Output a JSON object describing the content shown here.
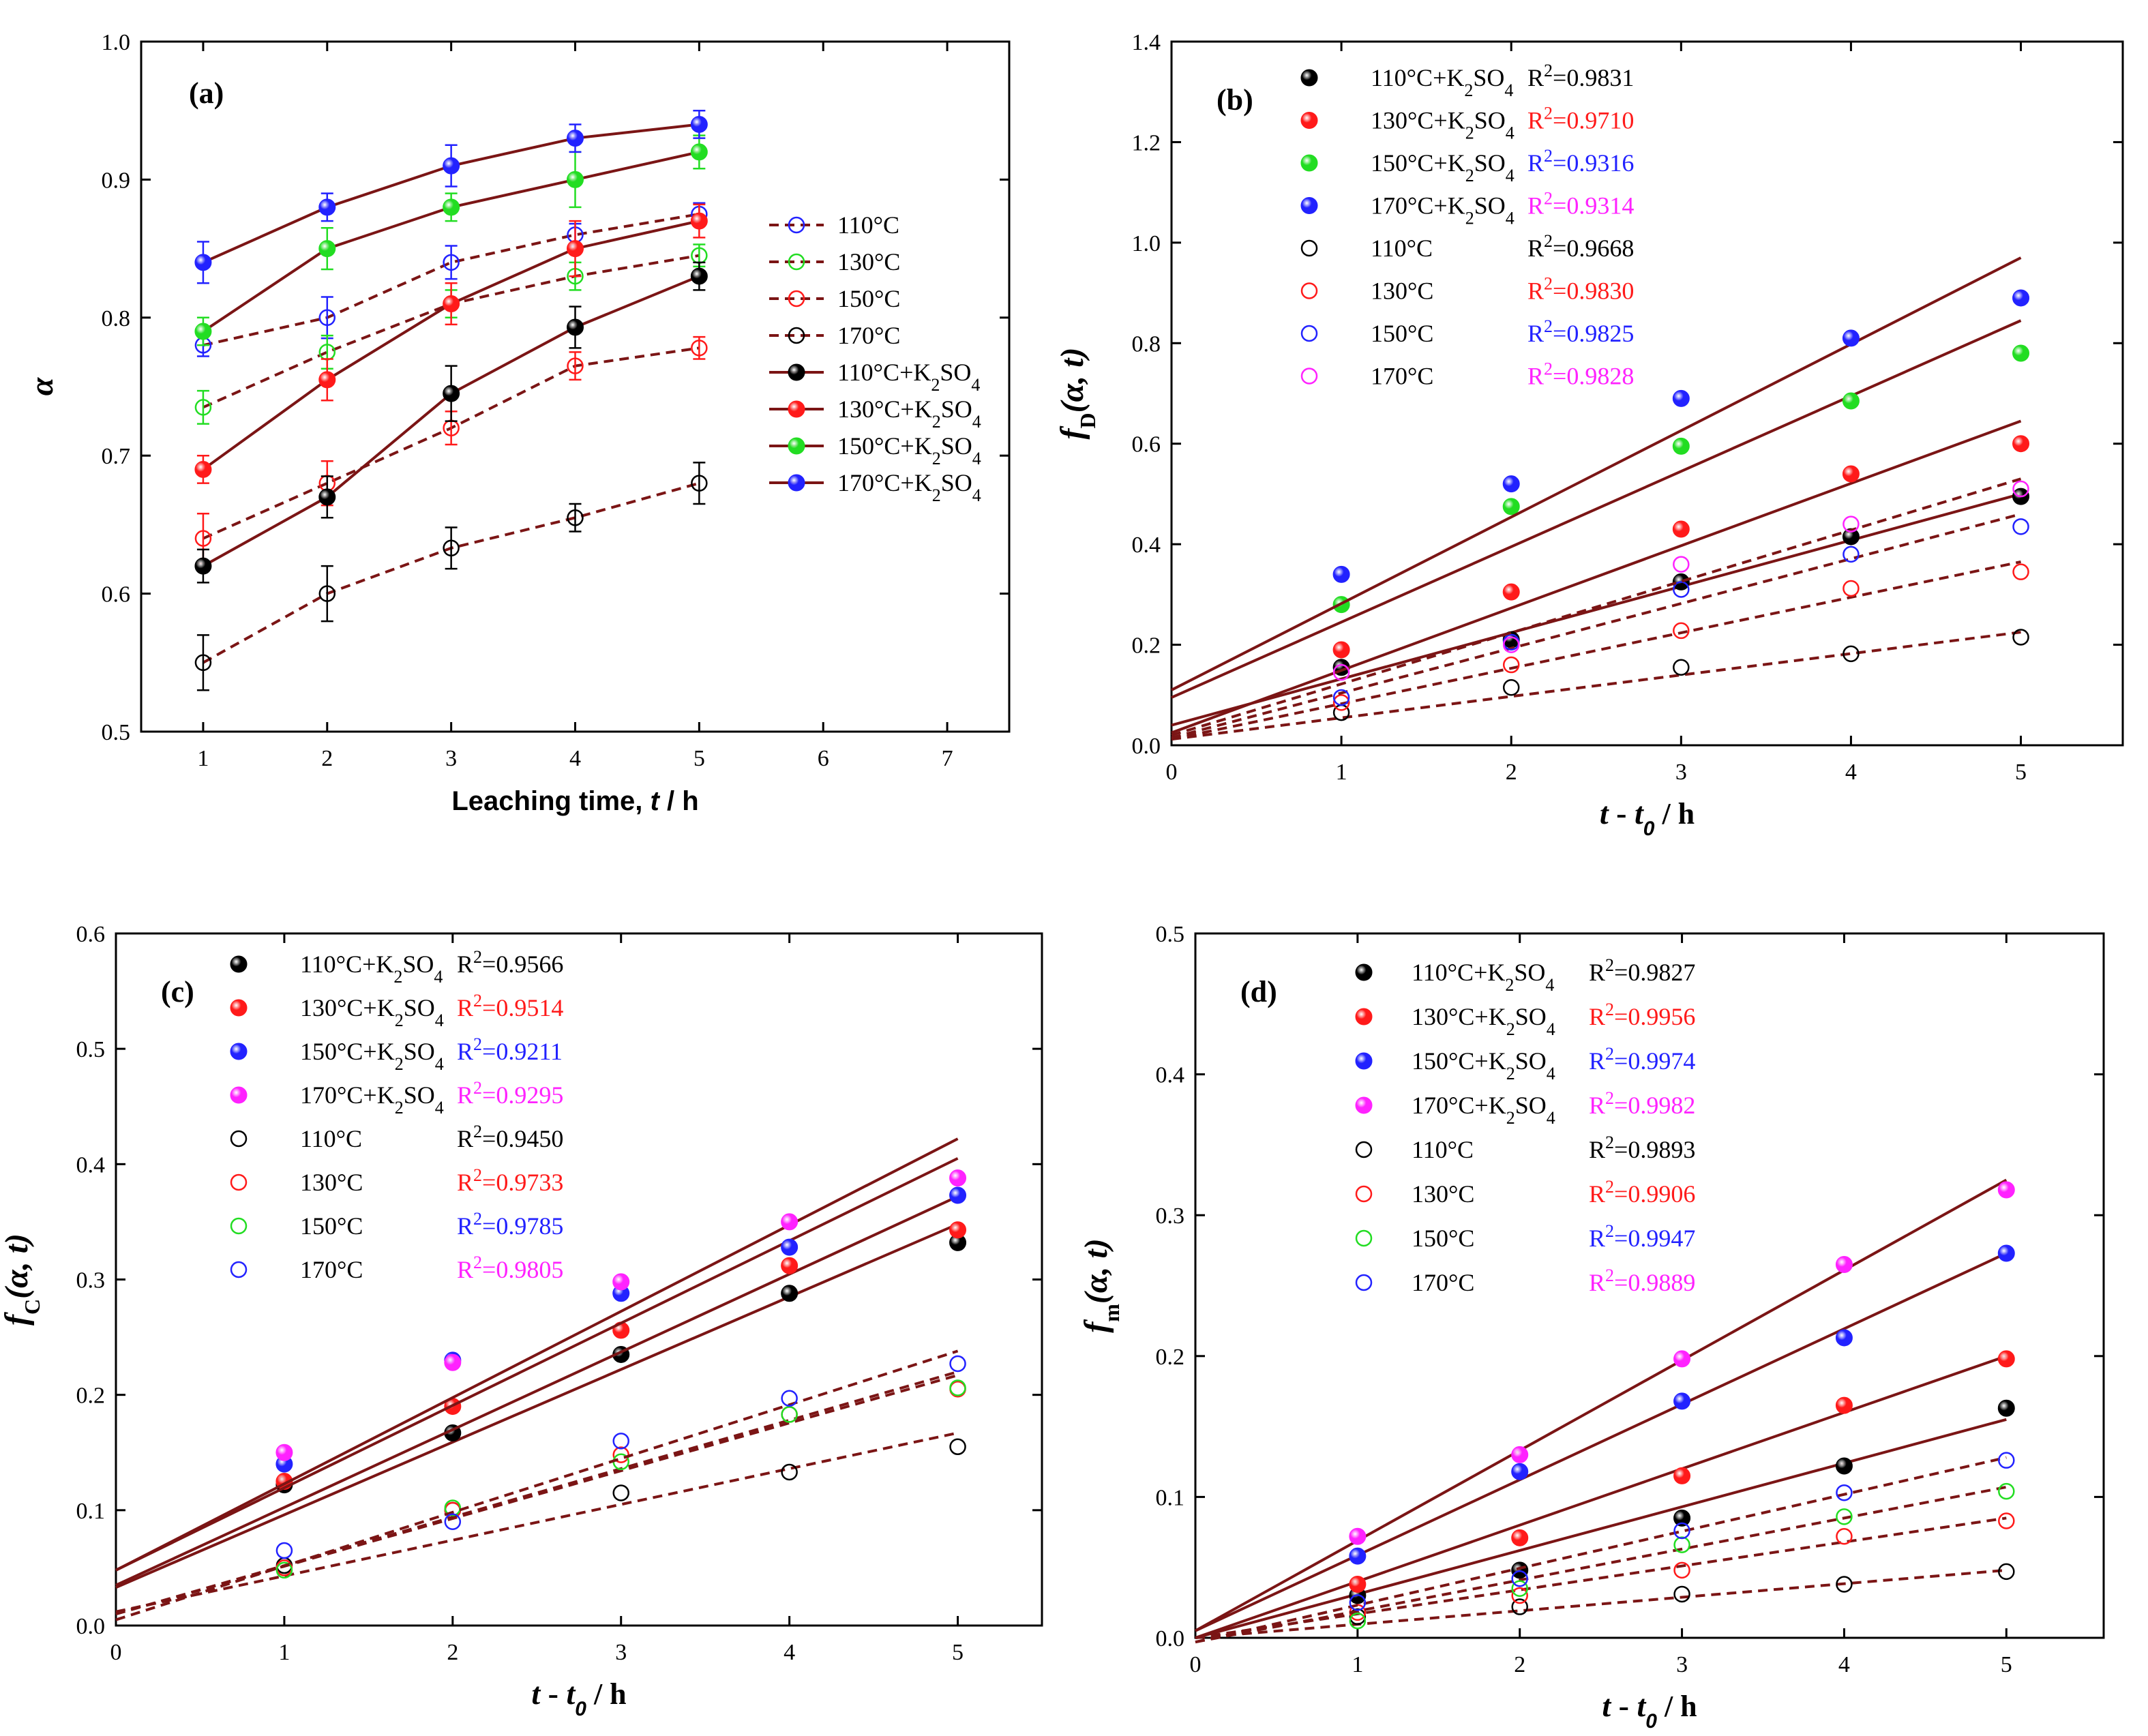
{
  "colors": {
    "line": "#7b1515",
    "black": "#000000",
    "red": "#ff1a1a",
    "green": "#22dd22",
    "blue": "#2222ff",
    "magenta": "#ff22ff"
  },
  "chart_data": [
    {
      "panel": "(a)",
      "type": "line",
      "xlabel": "Leaching time, t / h",
      "xlabel_parts": {
        "pre": "Leaching time, ",
        "var": "t",
        "post": "  / h"
      },
      "ylabel": "α",
      "xlim": [
        0.5,
        7.5
      ],
      "ylim": [
        0.5,
        1.0
      ],
      "xticks": [
        "1",
        "2",
        "3",
        "4",
        "5",
        "6",
        "7"
      ],
      "yticks": [
        "0.5",
        "0.6",
        "0.7",
        "0.8",
        "0.9",
        "1.0"
      ],
      "x": [
        1,
        2,
        3,
        4,
        5
      ],
      "series": [
        {
          "name": "110°C",
          "color": "blue",
          "filled": false,
          "dashed": true,
          "values": [
            0.78,
            0.8,
            0.84,
            0.86,
            0.875
          ],
          "errors": [
            0.008,
            0.015,
            0.012,
            0.008,
            0.008
          ]
        },
        {
          "name": "130°C",
          "color": "green",
          "filled": false,
          "dashed": true,
          "values": [
            0.735,
            0.775,
            0.81,
            0.83,
            0.845
          ],
          "errors": [
            0.012,
            0.012,
            0.01,
            0.01,
            0.008
          ]
        },
        {
          "name": "150°C",
          "color": "red",
          "filled": false,
          "dashed": true,
          "values": [
            0.64,
            0.68,
            0.72,
            0.765,
            0.778
          ],
          "errors": [
            0.018,
            0.016,
            0.012,
            0.01,
            0.008
          ]
        },
        {
          "name": "170°C",
          "color": "black",
          "filled": false,
          "dashed": true,
          "values": [
            0.55,
            0.6,
            0.633,
            0.655,
            0.68
          ],
          "errors": [
            0.02,
            0.02,
            0.015,
            0.01,
            0.015
          ]
        },
        {
          "name": "110°C+K2SO4",
          "color": "black",
          "filled": true,
          "dashed": false,
          "values": [
            0.62,
            0.67,
            0.745,
            0.793,
            0.83
          ],
          "errors": [
            0.012,
            0.015,
            0.02,
            0.015,
            0.01
          ]
        },
        {
          "name": "130°C+K2SO4",
          "color": "red",
          "filled": true,
          "dashed": false,
          "values": [
            0.69,
            0.755,
            0.81,
            0.85,
            0.87
          ],
          "errors": [
            0.01,
            0.015,
            0.015,
            0.02,
            0.012
          ]
        },
        {
          "name": "150°C+K2SO4",
          "color": "green",
          "filled": true,
          "dashed": false,
          "values": [
            0.79,
            0.85,
            0.88,
            0.9,
            0.92
          ],
          "errors": [
            0.01,
            0.015,
            0.01,
            0.02,
            0.012
          ]
        },
        {
          "name": "170°C+K2SO4",
          "color": "blue",
          "filled": true,
          "dashed": false,
          "values": [
            0.84,
            0.88,
            0.91,
            0.93,
            0.94
          ],
          "errors": [
            0.015,
            0.01,
            0.015,
            0.01,
            0.01
          ]
        }
      ]
    },
    {
      "panel": "(b)",
      "type": "scatter",
      "xlabel": "t - t0 / h",
      "xlabel_parts": {
        "t": "t",
        "dash": " - ",
        "t0": "t",
        "sub": "0",
        "post": "  / h"
      },
      "ylabel": "fD(α, t)",
      "ylabel_parts": {
        "f": "f",
        "sub": "D",
        "args": "(α, t)"
      },
      "xlim": [
        0,
        5.6
      ],
      "ylim": [
        0,
        1.4
      ],
      "xticks": [
        "0",
        "1",
        "2",
        "3",
        "4",
        "5"
      ],
      "yticks": [
        "0.0",
        "0.2",
        "0.4",
        "0.6",
        "0.8",
        "1.0",
        "1.2",
        "1.4"
      ],
      "x": [
        1,
        2,
        3,
        4,
        5
      ],
      "series": [
        {
          "name": "110°C+K2SO4",
          "r2": "R²=0.9831",
          "r2_num": "0.9831",
          "color": "black",
          "r2color": "black",
          "filled": true,
          "values": [
            0.155,
            0.21,
            0.325,
            0.415,
            0.495
          ],
          "fit": [
            0.04,
            0.5
          ]
        },
        {
          "name": "130°C+K2SO4",
          "r2": "R²=0.9710",
          "r2_num": "0.9710",
          "color": "red",
          "r2color": "red",
          "filled": true,
          "values": [
            0.19,
            0.305,
            0.43,
            0.54,
            0.6
          ],
          "fit": [
            0.025,
            0.645
          ]
        },
        {
          "name": "150°C+K2SO4",
          "r2": "R²=0.9316",
          "r2_num": "0.9316",
          "color": "green",
          "r2color": "blue",
          "filled": true,
          "values": [
            0.28,
            0.475,
            0.595,
            0.685,
            0.78
          ],
          "fit": [
            0.095,
            0.845
          ]
        },
        {
          "name": "170°C+K2SO4",
          "r2": "R²=0.9314",
          "r2_num": "0.9314",
          "color": "blue",
          "r2color": "magenta",
          "filled": true,
          "values": [
            0.34,
            0.52,
            0.69,
            0.81,
            0.89
          ],
          "fit": [
            0.11,
            0.97
          ]
        },
        {
          "name": "110°C",
          "r2": "R²=0.9668",
          "r2_num": "0.9668",
          "color": "black",
          "r2color": "black",
          "filled": false,
          "values": [
            0.065,
            0.115,
            0.155,
            0.182,
            0.215
          ],
          "fit": [
            0.012,
            0.225
          ]
        },
        {
          "name": "130°C",
          "r2": "R²=0.9830",
          "r2_num": "0.9830",
          "color": "red",
          "r2color": "red",
          "filled": false,
          "values": [
            0.085,
            0.16,
            0.228,
            0.312,
            0.345
          ],
          "fit": [
            0.012,
            0.365
          ]
        },
        {
          "name": "150°C",
          "r2": "R²=0.9825",
          "r2_num": "0.9825",
          "color": "blue",
          "r2color": "blue",
          "filled": false,
          "values": [
            0.095,
            0.205,
            0.31,
            0.38,
            0.435
          ],
          "fit": [
            0.015,
            0.46
          ]
        },
        {
          "name": "170°C",
          "r2": "R²=0.9828",
          "r2_num": "0.9828",
          "color": "magenta",
          "r2color": "magenta",
          "filled": false,
          "values": [
            0.145,
            0.2,
            0.36,
            0.44,
            0.51
          ],
          "fit": [
            0.02,
            0.53
          ]
        }
      ]
    },
    {
      "panel": "(c)",
      "type": "scatter",
      "xlabel": "t - t0 / h",
      "xlabel_parts": {
        "t": "t",
        "dash": " - ",
        "t0": "t",
        "sub": "0",
        "post": "  / h"
      },
      "ylabel": "fC(α, t)",
      "ylabel_parts": {
        "f": "f",
        "sub": "C",
        "args": "(α, t)"
      },
      "xlim": [
        0,
        5.5
      ],
      "ylim": [
        0,
        0.6
      ],
      "xticks": [
        "0",
        "1",
        "2",
        "3",
        "4",
        "5"
      ],
      "yticks": [
        "0.0",
        "0.1",
        "0.2",
        "0.3",
        "0.4",
        "0.5",
        "0.6"
      ],
      "x": [
        1,
        2,
        3,
        4,
        5
      ],
      "series": [
        {
          "name": "110°C+K2SO4",
          "r2": "R²=0.9566",
          "r2_num": "0.9566",
          "color": "black",
          "r2color": "black",
          "filled": true,
          "values": [
            0.122,
            0.167,
            0.235,
            0.288,
            0.332
          ],
          "fit": [
            0.033,
            0.348
          ]
        },
        {
          "name": "130°C+K2SO4",
          "r2": "R²=0.9514",
          "r2_num": "0.9514",
          "color": "red",
          "r2color": "red",
          "filled": true,
          "values": [
            0.125,
            0.19,
            0.256,
            0.312,
            0.343
          ],
          "fit": [
            0.035,
            0.372
          ]
        },
        {
          "name": "150°C+K2SO4",
          "r2": "R²=0.9211",
          "r2_num": "0.9211",
          "color": "blue",
          "r2color": "blue",
          "filled": true,
          "values": [
            0.14,
            0.23,
            0.288,
            0.328,
            0.373
          ],
          "fit": [
            0.048,
            0.405
          ]
        },
        {
          "name": "170°C+K2SO4",
          "r2": "R²=0.9295",
          "r2_num": "0.9295",
          "color": "magenta",
          "r2color": "magenta",
          "filled": true,
          "values": [
            0.15,
            0.228,
            0.298,
            0.35,
            0.388
          ],
          "fit": [
            0.048,
            0.422
          ]
        },
        {
          "name": "110°C",
          "r2": "R²=0.9450",
          "r2_num": "0.9450",
          "color": "black",
          "r2color": "black",
          "filled": false,
          "values": [
            0.052,
            0.1,
            0.115,
            0.133,
            0.155
          ],
          "fit": [
            0.012,
            0.167
          ]
        },
        {
          "name": "130°C",
          "r2": "R²=0.9733",
          "r2_num": "0.9733",
          "color": "red",
          "r2color": "red",
          "filled": false,
          "values": [
            0.05,
            0.1,
            0.148,
            0.183,
            0.205
          ],
          "fit": [
            0.01,
            0.217
          ]
        },
        {
          "name": "150°C",
          "r2": "R²=0.9785",
          "r2_num": "0.9785",
          "color": "green",
          "r2color": "blue",
          "filled": false,
          "values": [
            0.048,
            0.102,
            0.142,
            0.183,
            0.206
          ],
          "fit": [
            0.01,
            0.22
          ]
        },
        {
          "name": "170°C",
          "r2": "R²=0.9805",
          "r2_num": "0.9805",
          "color": "blue",
          "r2color": "magenta",
          "filled": false,
          "values": [
            0.065,
            0.09,
            0.16,
            0.197,
            0.227
          ],
          "fit": [
            0.005,
            0.238
          ]
        }
      ]
    },
    {
      "panel": "(d)",
      "type": "scatter",
      "xlabel": "t - t0 / h",
      "xlabel_parts": {
        "t": "t",
        "dash": " - ",
        "t0": "t",
        "sub": "0",
        "post": " / h"
      },
      "ylabel": "fm(α, t)",
      "ylabel_parts": {
        "f": "f",
        "sub": "m",
        "args": "(α, t)"
      },
      "xlim": [
        0,
        5.6
      ],
      "ylim": [
        0,
        0.5
      ],
      "xticks": [
        "0",
        "1",
        "2",
        "3",
        "4",
        "5"
      ],
      "yticks": [
        "0.0",
        "0.1",
        "0.2",
        "0.3",
        "0.4",
        "0.5"
      ],
      "x": [
        1,
        2,
        3,
        4,
        5
      ],
      "series": [
        {
          "name": "110°C+K2SO4",
          "r2": "R²=0.9827",
          "r2_num": "0.9827",
          "color": "black",
          "r2color": "black",
          "filled": true,
          "values": [
            0.03,
            0.048,
            0.085,
            0.122,
            0.163
          ],
          "fit": [
            0.0,
            0.155
          ]
        },
        {
          "name": "130°C+K2SO4",
          "r2": "R²=0.9956",
          "r2_num": "0.9956",
          "color": "red",
          "r2color": "red",
          "filled": true,
          "values": [
            0.038,
            0.071,
            0.115,
            0.165,
            0.198
          ],
          "fit": [
            0.0,
            0.2
          ]
        },
        {
          "name": "150°C+K2SO4",
          "r2": "R²=0.9974",
          "r2_num": "0.9974",
          "color": "blue",
          "r2color": "blue",
          "filled": true,
          "values": [
            0.058,
            0.118,
            0.168,
            0.213,
            0.273
          ],
          "fit": [
            0.005,
            0.273
          ]
        },
        {
          "name": "170°C+K2SO4",
          "r2": "R²=0.9982",
          "r2_num": "0.9982",
          "color": "magenta",
          "r2color": "magenta",
          "filled": true,
          "values": [
            0.072,
            0.13,
            0.198,
            0.265,
            0.318
          ],
          "fit": [
            0.005,
            0.325
          ]
        },
        {
          "name": "110°C",
          "r2": "R²=0.9893",
          "r2_num": "0.9893",
          "color": "black",
          "r2color": "black",
          "filled": false,
          "values": [
            0.015,
            0.022,
            0.031,
            0.038,
            0.047
          ],
          "fit": [
            0.0,
            0.048
          ]
        },
        {
          "name": "130°C",
          "r2": "R²=0.9906",
          "r2_num": "0.9906",
          "color": "red",
          "r2color": "red",
          "filled": false,
          "values": [
            0.018,
            0.03,
            0.048,
            0.072,
            0.083
          ],
          "fit": [
            0.0,
            0.085
          ]
        },
        {
          "name": "150°C",
          "r2": "R²=0.9947",
          "r2_num": "0.9947",
          "color": "green",
          "r2color": "blue",
          "filled": false,
          "values": [
            0.012,
            0.035,
            0.066,
            0.086,
            0.104
          ],
          "fit": [
            -0.003,
            0.107
          ]
        },
        {
          "name": "170°C",
          "r2": "R²=0.9889",
          "r2_num": "0.9889",
          "color": "blue",
          "r2color": "magenta",
          "filled": false,
          "values": [
            0.025,
            0.042,
            0.076,
            0.103,
            0.126
          ],
          "fit": [
            -0.003,
            0.128
          ]
        }
      ]
    }
  ]
}
